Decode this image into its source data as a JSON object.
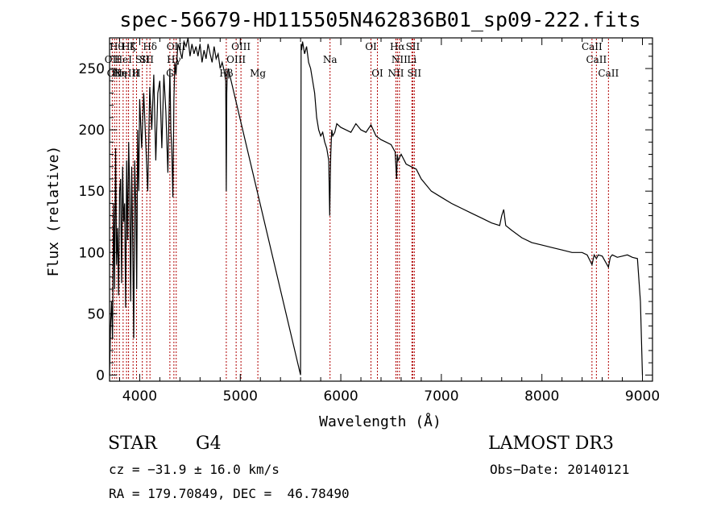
{
  "chart_data": {
    "type": "line",
    "title": "spec-56679-HD115505N462836B01_sp09-222.fits",
    "xlabel": "Wavelength (Å)",
    "ylabel": "Flux (relative)",
    "xlim": [
      3700,
      9100
    ],
    "ylim": [
      -5,
      275
    ],
    "xticks": [
      4000,
      5000,
      6000,
      7000,
      8000,
      9000
    ],
    "yticks": [
      0,
      50,
      100,
      150,
      200,
      250
    ],
    "grid": false,
    "series": [
      {
        "name": "flux",
        "gap": [
          4880,
          5600
        ],
        "x": [
          3700,
          3710,
          3720,
          3730,
          3740,
          3750,
          3760,
          3770,
          3780,
          3790,
          3800,
          3810,
          3820,
          3830,
          3840,
          3850,
          3860,
          3870,
          3880,
          3890,
          3900,
          3910,
          3920,
          3930,
          3940,
          3950,
          3960,
          3970,
          3980,
          3990,
          4000,
          4020,
          4040,
          4060,
          4080,
          4100,
          4120,
          4140,
          4160,
          4180,
          4200,
          4220,
          4240,
          4260,
          4280,
          4300,
          4310,
          4320,
          4330,
          4340,
          4350,
          4360,
          4380,
          4400,
          4420,
          4440,
          4460,
          4480,
          4500,
          4520,
          4540,
          4560,
          4580,
          4600,
          4620,
          4640,
          4660,
          4680,
          4700,
          4720,
          4740,
          4760,
          4780,
          4800,
          4820,
          4840,
          4855,
          4861,
          4866,
          4870,
          4880,
          5600,
          5605,
          5610,
          5620,
          5640,
          5660,
          5680,
          5700,
          5720,
          5740,
          5760,
          5780,
          5800,
          5820,
          5840,
          5860,
          5880,
          5890,
          5895,
          5900,
          5910,
          5920,
          5940,
          5960,
          6000,
          6050,
          6100,
          6150,
          6200,
          6250,
          6300,
          6350,
          6400,
          6450,
          6500,
          6540,
          6555,
          6562,
          6570,
          6600,
          6650,
          6700,
          6750,
          6800,
          6900,
          7000,
          7100,
          7200,
          7300,
          7400,
          7500,
          7580,
          7600,
          7620,
          7640,
          7700,
          7800,
          7900,
          8000,
          8100,
          8200,
          8300,
          8400,
          8450,
          8498,
          8520,
          8542,
          8560,
          8600,
          8662,
          8680,
          8700,
          8750,
          8800,
          8850,
          8900,
          8950,
          8980,
          9000
        ],
        "y": [
          0,
          40,
          60,
          30,
          140,
          70,
          185,
          90,
          120,
          65,
          150,
          160,
          75,
          170,
          125,
          140,
          55,
          175,
          110,
          190,
          150,
          60,
          170,
          110,
          30,
          175,
          140,
          70,
          200,
          150,
          225,
          185,
          230,
          190,
          150,
          235,
          200,
          245,
          175,
          230,
          240,
          185,
          245,
          215,
          165,
          250,
          200,
          180,
          145,
          225,
          255,
          245,
          270,
          265,
          258,
          272,
          268,
          275,
          260,
          270,
          262,
          268,
          260,
          270,
          255,
          265,
          258,
          270,
          262,
          255,
          268,
          258,
          262,
          250,
          255,
          248,
          240,
          150,
          230,
          245,
          250,
          0,
          270,
          265,
          272,
          262,
          268,
          255,
          250,
          240,
          230,
          210,
          200,
          195,
          198,
          190,
          185,
          175,
          130,
          160,
          180,
          200,
          195,
          198,
          205,
          202,
          200,
          198,
          205,
          200,
          198,
          204,
          195,
          192,
          190,
          188,
          182,
          160,
          180,
          175,
          180,
          172,
          170,
          168,
          160,
          150,
          145,
          140,
          136,
          132,
          128,
          124,
          122,
          130,
          135,
          122,
          118,
          112,
          108,
          106,
          104,
          102,
          100,
          100,
          98,
          90,
          98,
          95,
          98,
          97,
          88,
          96,
          98,
          96,
          97,
          98,
          96,
          95,
          60,
          0
        ]
      }
    ],
    "line_markers": [
      {
        "wl": 3727,
        "label": "OII",
        "row": 1
      },
      {
        "wl": 3750,
        "label": "OII",
        "row": 2
      },
      {
        "wl": 3771,
        "label": "Hθ",
        "row": 0
      },
      {
        "wl": 3798,
        "label": "Hη",
        "row": 2
      },
      {
        "wl": 3835,
        "label": "HeI",
        "row": 1
      },
      {
        "wl": 3869,
        "label": "NeIII",
        "row": 2
      },
      {
        "wl": 3889,
        "label": "Hζ",
        "row": 0
      },
      {
        "wl": 3934,
        "label": "K",
        "row": 0
      },
      {
        "wl": 3968,
        "label": "H",
        "row": 2
      },
      {
        "wl": 4026,
        "label": "SII",
        "row": 1
      },
      {
        "wl": 4070,
        "label": "SII",
        "row": 1
      },
      {
        "wl": 4102,
        "label": "Hδ",
        "row": 0
      },
      {
        "wl": 4300,
        "label": "G",
        "row": 2
      },
      {
        "wl": 4340,
        "label": "Hγ",
        "row": 1
      },
      {
        "wl": 4363,
        "label": "OIII",
        "row": 0
      },
      {
        "wl": 4861,
        "label": "Hβ",
        "row": 2
      },
      {
        "wl": 4959,
        "label": "OIII",
        "row": 1
      },
      {
        "wl": 5007,
        "label": "OIII",
        "row": 0
      },
      {
        "wl": 5175,
        "label": "Mg",
        "row": 2
      },
      {
        "wl": 5893,
        "label": "Na",
        "row": 1
      },
      {
        "wl": 6300,
        "label": "OI",
        "row": 0
      },
      {
        "wl": 6364,
        "label": "OI",
        "row": 2
      },
      {
        "wl": 6548,
        "label": "NII",
        "row": 2
      },
      {
        "wl": 6563,
        "label": "Hα",
        "row": 0
      },
      {
        "wl": 6583,
        "label": "NII",
        "row": 1
      },
      {
        "wl": 6707,
        "label": "Li",
        "row": 1
      },
      {
        "wl": 6716,
        "label": "SII",
        "row": 0
      },
      {
        "wl": 6731,
        "label": "SII",
        "row": 2
      },
      {
        "wl": 8498,
        "label": "CaII",
        "row": 0
      },
      {
        "wl": 8542,
        "label": "CaII",
        "row": 1
      },
      {
        "wl": 8662,
        "label": "CaII",
        "row": 2
      }
    ]
  },
  "info": {
    "class_label": "STAR",
    "subclass": "G4",
    "survey": "LAMOST DR3",
    "cz": "cz = −31.9 ± 16.0 km/s",
    "obs_date": "Obs−Date: 20140121",
    "coords": "RA = 179.70849, DEC =  46.78490"
  },
  "colors": {
    "axis": "#000000",
    "spectrum": "#000000",
    "marker": "#b00000"
  }
}
